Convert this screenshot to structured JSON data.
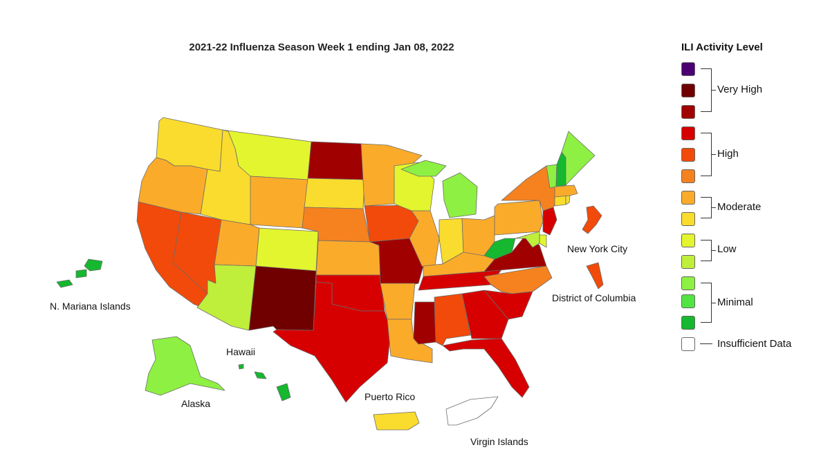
{
  "title": "2021-22 Influenza Season Week 1 ending Jan 08, 2022",
  "legend": {
    "title": "ILI Activity Level",
    "swatches": [
      "#4a0070",
      "#700000",
      "#a10000",
      "#d60000",
      "#f24a0a",
      "#f5821f",
      "#fbab2a",
      "#f9dc2d",
      "#e3f52e",
      "#bfef3b",
      "#8ef042",
      "#52e542",
      "#15b82e",
      "#ffffff"
    ],
    "groups": {
      "very_high": "Very High",
      "high": "High",
      "moderate": "Moderate",
      "low": "Low",
      "minimal": "Minimal",
      "insufficient": "Insufficient Data"
    }
  },
  "map_labels": {
    "nyc": "New York City",
    "dc": "District of Columbia",
    "nmi": "N. Mariana Islands",
    "hawaii": "Hawaii",
    "alaska": "Alaska",
    "pr": "Puerto Rico",
    "vi": "Virgin Islands"
  },
  "level_colors": {
    "1": "#15b82e",
    "2": "#52e542",
    "3": "#8ef042",
    "4": "#bfef3b",
    "5": "#e3f52e",
    "6": "#f9dc2d",
    "7": "#fbab2a",
    "8": "#f5821f",
    "9": "#f24a0a",
    "10": "#d60000",
    "11": "#a10000",
    "12": "#700000",
    "13": "#4a0070",
    "insufficient": "#ffffff"
  },
  "regions": {
    "WA": 6,
    "OR": 7,
    "CA": 9,
    "NV": 9,
    "ID": 6,
    "MT": 5,
    "WY": 7,
    "UT": 7,
    "AZ": 4,
    "CO": 5,
    "NM": 12,
    "ND": 11,
    "SD": 6,
    "NE": 8,
    "KS": 7,
    "OK": 10,
    "TX": 10,
    "MN": 7,
    "IA": 9,
    "MO": 11,
    "AR": 7,
    "LA": 7,
    "WI": 5,
    "IL": 7,
    "MS": 11,
    "MI": 3,
    "IN": 6,
    "KY": 7,
    "TN": 10,
    "AL": 9,
    "GA": 10,
    "FL": 10,
    "OH": 7,
    "WV": 1,
    "VA": 11,
    "NC": 8,
    "SC": 10,
    "PA": 7,
    "NY": 8,
    "NJ": 10,
    "DE": 5,
    "MD": 4,
    "CT": 6,
    "RI": 6,
    "MA": 7,
    "VT": 3,
    "NH": 1,
    "ME": 3,
    "NYC": 9,
    "DC": 9,
    "AK": 3,
    "HI": 1,
    "PR": 6,
    "VI": "insufficient",
    "NMI": 1
  }
}
